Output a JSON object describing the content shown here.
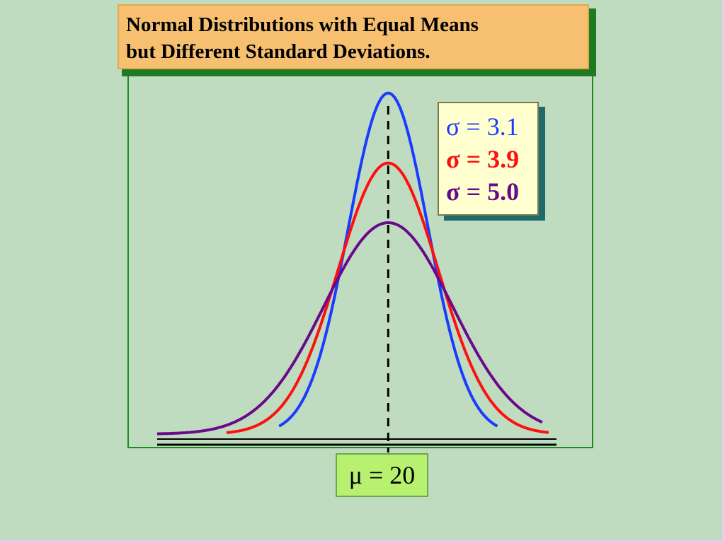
{
  "title": {
    "line1": "Normal Distributions with Equal Means",
    "line2": "but Different Standard Deviations."
  },
  "mean_label": "μ = 20",
  "legend": [
    {
      "text": "σ = 3.1",
      "color": "#1a3cff",
      "bold": false
    },
    {
      "text": "σ = 3.9",
      "color": "#ff1010",
      "bold": true
    },
    {
      "text": "σ = 5.0",
      "color": "#6a0a8a",
      "bold": true
    }
  ],
  "colors": {
    "background": "#c0dcc0",
    "frame": "#1e8c1e",
    "title_box": "#f7c071",
    "legend_box": "#ffffd0",
    "mean_box": "#b8f070"
  },
  "chart_data": {
    "type": "line",
    "title": "Normal Distributions with Equal Means but Different Standard Deviations.",
    "xlabel": "",
    "ylabel": "",
    "mean": 20,
    "mean_line": "dashed",
    "series": [
      {
        "name": "σ = 3.1",
        "mu": 20,
        "sigma": 3.1,
        "color": "#1a3cff",
        "x_range": [
          11.5,
          28.5
        ]
      },
      {
        "name": "σ = 3.9",
        "mu": 20,
        "sigma": 3.9,
        "color": "#ff1010",
        "x_range": [
          7.4,
          32.5
        ]
      },
      {
        "name": "σ = 5.0",
        "mu": 20,
        "sigma": 5.0,
        "color": "#6a0a8a",
        "x_range": [
          2.0,
          32.0
        ]
      }
    ],
    "xlim": [
      2,
      33
    ],
    "ylim": [
      0,
      0.135
    ],
    "grid": false,
    "legend_position": "top-right"
  }
}
